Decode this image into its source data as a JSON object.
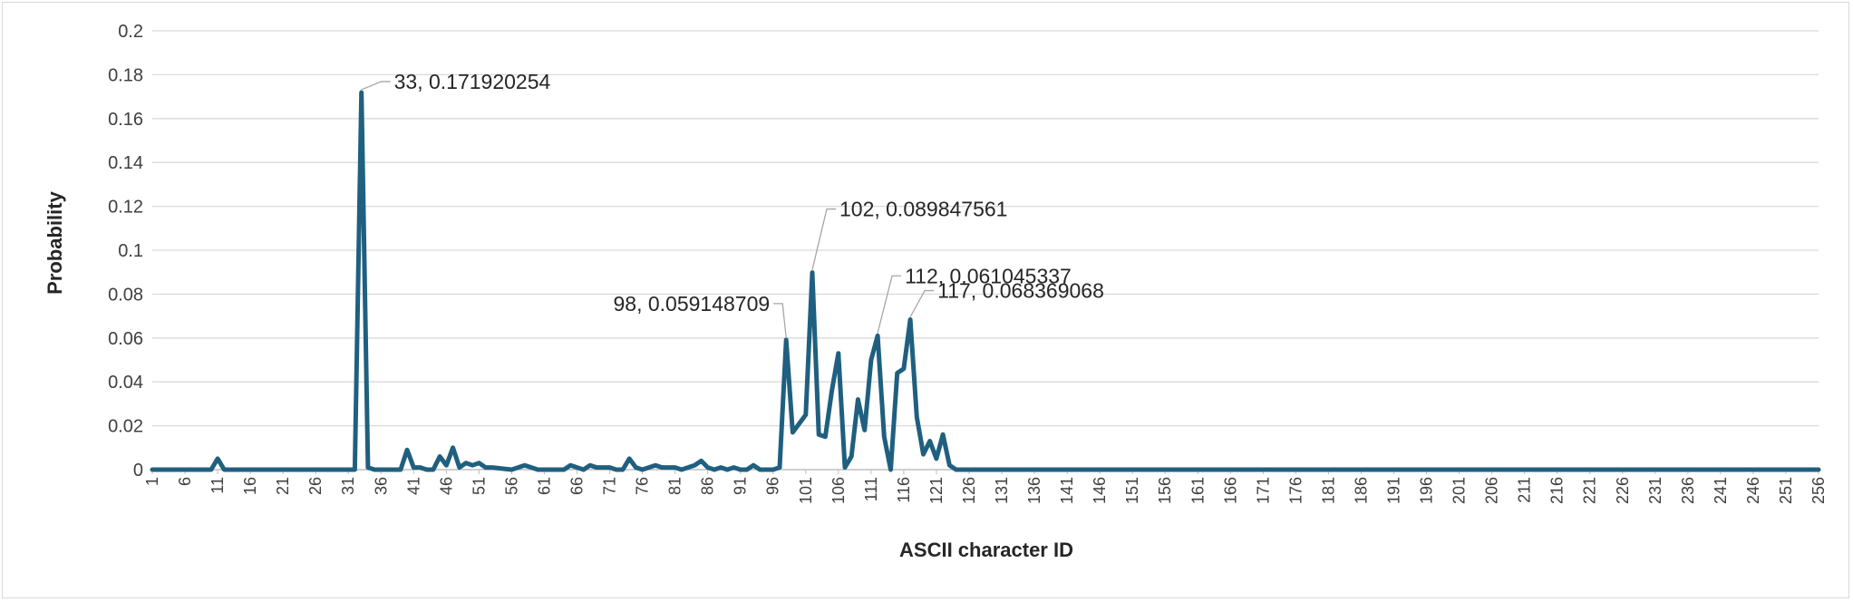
{
  "chart_data": {
    "type": "line",
    "xlabel": "ASCII character ID",
    "ylabel": "Probability",
    "ylim": [
      0,
      0.2
    ],
    "yticks": [
      "0",
      "0.02",
      "0.04",
      "0.06",
      "0.08",
      "0.1",
      "0.12",
      "0.14",
      "0.16",
      "0.18",
      "0.2"
    ],
    "xlim": [
      1,
      256
    ],
    "xticks": [
      1,
      6,
      11,
      16,
      21,
      26,
      31,
      36,
      41,
      46,
      51,
      56,
      61,
      66,
      71,
      76,
      81,
      86,
      91,
      96,
      101,
      106,
      111,
      116,
      121,
      126,
      131,
      136,
      141,
      146,
      151,
      156,
      161,
      166,
      171,
      176,
      181,
      186,
      191,
      196,
      201,
      206,
      211,
      216,
      221,
      226,
      231,
      236,
      241,
      246,
      251,
      256
    ],
    "grid": true,
    "legend": "none",
    "line_color": "#1f5f7f",
    "series": [
      {
        "points": [
          [
            1,
            0
          ],
          [
            10,
            0
          ],
          [
            11,
            0.005
          ],
          [
            12,
            0
          ],
          [
            32,
            0
          ],
          [
            33,
            0.171920254
          ],
          [
            34,
            0.001
          ],
          [
            35,
            0
          ],
          [
            39,
            0
          ],
          [
            40,
            0.009
          ],
          [
            41,
            0.001
          ],
          [
            42,
            0.001
          ],
          [
            43,
            0
          ],
          [
            44,
            0
          ],
          [
            45,
            0.006
          ],
          [
            46,
            0.002
          ],
          [
            47,
            0.01
          ],
          [
            48,
            0.001
          ],
          [
            49,
            0.003
          ],
          [
            50,
            0.002
          ],
          [
            51,
            0.003
          ],
          [
            52,
            0.001
          ],
          [
            53,
            0.001
          ],
          [
            56,
            0
          ],
          [
            57,
            0.001
          ],
          [
            58,
            0.002
          ],
          [
            59,
            0.001
          ],
          [
            60,
            0
          ],
          [
            64,
            0
          ],
          [
            65,
            0.002
          ],
          [
            66,
            0.001
          ],
          [
            67,
            0
          ],
          [
            68,
            0.002
          ],
          [
            69,
            0.001
          ],
          [
            70,
            0.001
          ],
          [
            71,
            0.001
          ],
          [
            72,
            0
          ],
          [
            73,
            0
          ],
          [
            74,
            0.005
          ],
          [
            75,
            0.001
          ],
          [
            76,
            0
          ],
          [
            77,
            0.001
          ],
          [
            78,
            0.002
          ],
          [
            79,
            0.001
          ],
          [
            80,
            0.001
          ],
          [
            81,
            0.001
          ],
          [
            82,
            0
          ],
          [
            83,
            0.001
          ],
          [
            84,
            0.002
          ],
          [
            85,
            0.004
          ],
          [
            86,
            0.001
          ],
          [
            87,
            0
          ],
          [
            88,
            0.001
          ],
          [
            89,
            0
          ],
          [
            90,
            0.001
          ],
          [
            91,
            0
          ],
          [
            92,
            0
          ],
          [
            93,
            0.002
          ],
          [
            94,
            0
          ],
          [
            96,
            0
          ],
          [
            97,
            0.001
          ],
          [
            98,
            0.059148709
          ],
          [
            99,
            0.017
          ],
          [
            100,
            0.021
          ],
          [
            101,
            0.025
          ],
          [
            102,
            0.089847561
          ],
          [
            103,
            0.016
          ],
          [
            104,
            0.015
          ],
          [
            105,
            0.036
          ],
          [
            106,
            0.053
          ],
          [
            107,
            0.001
          ],
          [
            108,
            0.006
          ],
          [
            109,
            0.032
          ],
          [
            110,
            0.018
          ],
          [
            111,
            0.05
          ],
          [
            112,
            0.061045337
          ],
          [
            113,
            0.015
          ],
          [
            114,
            0
          ],
          [
            115,
            0.044
          ],
          [
            116,
            0.046
          ],
          [
            117,
            0.068369068
          ],
          [
            118,
            0.024
          ],
          [
            119,
            0.007
          ],
          [
            120,
            0.013
          ],
          [
            121,
            0.005
          ],
          [
            122,
            0.016
          ],
          [
            123,
            0.002
          ],
          [
            124,
            0
          ],
          [
            256,
            0
          ]
        ]
      }
    ],
    "annotations": [
      {
        "x": 33,
        "y": 0.171920254,
        "text": "33, 0.171920254"
      },
      {
        "x": 98,
        "y": 0.059148709,
        "text": "98, 0.059148709"
      },
      {
        "x": 102,
        "y": 0.089847561,
        "text": "102, 0.089847561"
      },
      {
        "x": 112,
        "y": 0.061045337,
        "text": "112, 0.061045337"
      },
      {
        "x": 117,
        "y": 0.068369068,
        "text": "117, 0.068369068"
      }
    ]
  }
}
